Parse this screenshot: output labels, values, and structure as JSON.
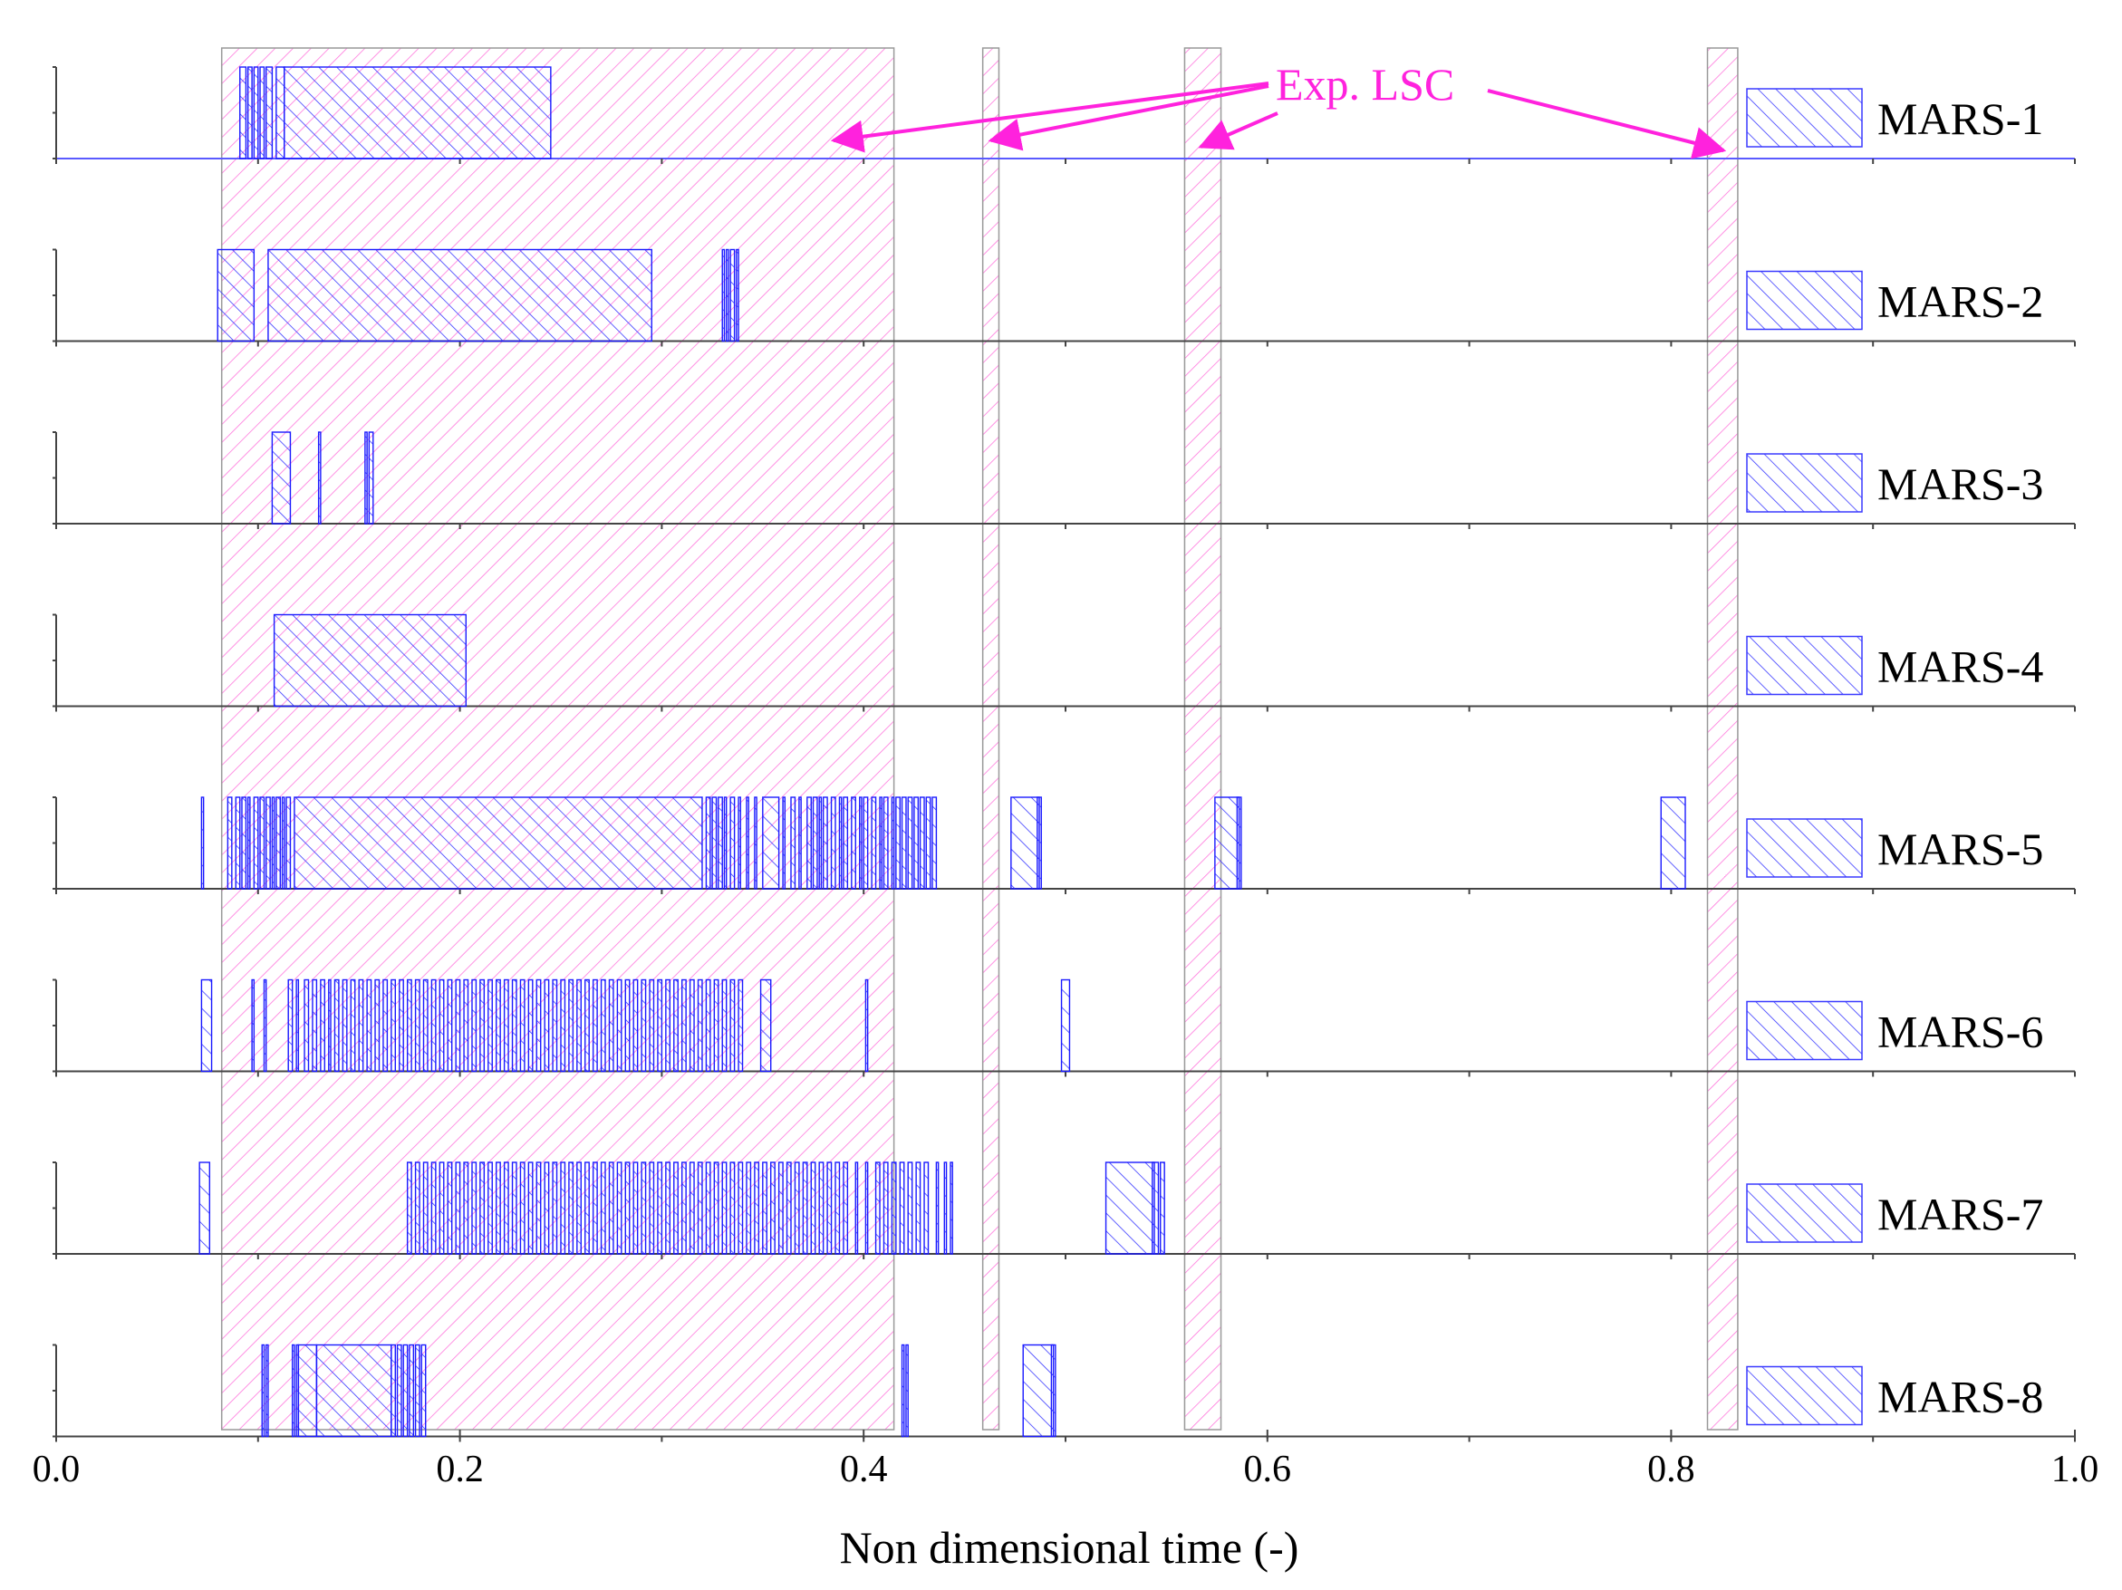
{
  "chart_data": {
    "type": "event-timeline",
    "xlabel": "Non dimensional time (-)",
    "xlim": [
      0.0,
      1.0
    ],
    "xticks": [
      "0.0",
      "0.2",
      "0.4",
      "0.6",
      "0.8",
      "1.0"
    ],
    "xtick_values": [
      0.0,
      0.2,
      0.4,
      0.6,
      0.8,
      1.0
    ],
    "grid": false,
    "colors": {
      "lsc_fill": "#ff66dd",
      "lsc_stroke": "#999999",
      "series": "#1a1aff",
      "annotation": "#ff22dd"
    },
    "experimental_lsc": {
      "label": "Exp. LSC",
      "intervals": [
        [
          0.082,
          0.415
        ],
        [
          0.459,
          0.467
        ],
        [
          0.559,
          0.577
        ],
        [
          0.818,
          0.833
        ]
      ]
    },
    "series": [
      {
        "name": "MARS-1",
        "intervals": [
          [
            0.091,
            0.094
          ],
          [
            0.095,
            0.097
          ],
          [
            0.098,
            0.1
          ],
          [
            0.101,
            0.103
          ],
          [
            0.104,
            0.107
          ],
          [
            0.109,
            0.113
          ],
          [
            0.113,
            0.245
          ]
        ]
      },
      {
        "name": "MARS-2",
        "intervals": [
          [
            0.08,
            0.098
          ],
          [
            0.105,
            0.295
          ],
          [
            0.33,
            0.331
          ],
          [
            0.332,
            0.333
          ],
          [
            0.334,
            0.336
          ],
          [
            0.337,
            0.338
          ]
        ]
      },
      {
        "name": "MARS-3",
        "intervals": [
          [
            0.107,
            0.116
          ],
          [
            0.13,
            0.131
          ],
          [
            0.153,
            0.154
          ],
          [
            0.155,
            0.157
          ]
        ]
      },
      {
        "name": "MARS-4",
        "intervals": [
          [
            0.108,
            0.203
          ]
        ]
      },
      {
        "name": "MARS-5",
        "intervals": [
          [
            0.072,
            0.073
          ],
          [
            0.085,
            0.087
          ],
          [
            0.089,
            0.091
          ],
          [
            0.092,
            0.094
          ],
          [
            0.095,
            0.096
          ],
          [
            0.098,
            0.1
          ],
          [
            0.101,
            0.103
          ],
          [
            0.104,
            0.106
          ],
          [
            0.107,
            0.108
          ],
          [
            0.109,
            0.111
          ],
          [
            0.112,
            0.113
          ],
          [
            0.114,
            0.116
          ],
          [
            0.118,
            0.32
          ],
          [
            0.322,
            0.324
          ],
          [
            0.325,
            0.327
          ],
          [
            0.328,
            0.33
          ],
          [
            0.331,
            0.332
          ],
          [
            0.334,
            0.336
          ],
          [
            0.338,
            0.339
          ],
          [
            0.342,
            0.343
          ],
          [
            0.346,
            0.347
          ],
          [
            0.35,
            0.358
          ],
          [
            0.36,
            0.361
          ],
          [
            0.364,
            0.366
          ],
          [
            0.368,
            0.369
          ],
          [
            0.372,
            0.374
          ],
          [
            0.375,
            0.377
          ],
          [
            0.378,
            0.379
          ],
          [
            0.38,
            0.382
          ],
          [
            0.384,
            0.386
          ],
          [
            0.388,
            0.389
          ],
          [
            0.39,
            0.392
          ],
          [
            0.394,
            0.396
          ],
          [
            0.398,
            0.399
          ],
          [
            0.4,
            0.402
          ],
          [
            0.404,
            0.406
          ],
          [
            0.408,
            0.409
          ],
          [
            0.41,
            0.412
          ],
          [
            0.414,
            0.415
          ],
          [
            0.416,
            0.418
          ],
          [
            0.419,
            0.421
          ],
          [
            0.422,
            0.424
          ],
          [
            0.425,
            0.427
          ],
          [
            0.428,
            0.43
          ],
          [
            0.431,
            0.433
          ],
          [
            0.434,
            0.436
          ],
          [
            0.473,
            0.487
          ],
          [
            0.486,
            0.488
          ],
          [
            0.574,
            0.586
          ],
          [
            0.585,
            0.587
          ],
          [
            0.795,
            0.807
          ]
        ]
      },
      {
        "name": "MARS-6",
        "intervals": [
          [
            0.072,
            0.077
          ],
          [
            0.097,
            0.098
          ],
          [
            0.103,
            0.104
          ],
          [
            0.115,
            0.117
          ],
          [
            0.119,
            0.12
          ],
          [
            0.123,
            0.125
          ],
          [
            0.127,
            0.129
          ],
          [
            0.131,
            0.133
          ],
          [
            0.135,
            0.136
          ],
          [
            0.138,
            0.14
          ],
          [
            0.142,
            0.144
          ],
          [
            0.146,
            0.148
          ],
          [
            0.15,
            0.152
          ],
          [
            0.154,
            0.156
          ],
          [
            0.158,
            0.16
          ],
          [
            0.162,
            0.164
          ],
          [
            0.166,
            0.168
          ],
          [
            0.17,
            0.172
          ],
          [
            0.174,
            0.176
          ],
          [
            0.178,
            0.18
          ],
          [
            0.182,
            0.184
          ],
          [
            0.186,
            0.188
          ],
          [
            0.19,
            0.192
          ],
          [
            0.194,
            0.196
          ],
          [
            0.198,
            0.2
          ],
          [
            0.202,
            0.204
          ],
          [
            0.206,
            0.208
          ],
          [
            0.21,
            0.212
          ],
          [
            0.214,
            0.216
          ],
          [
            0.218,
            0.22
          ],
          [
            0.222,
            0.224
          ],
          [
            0.226,
            0.228
          ],
          [
            0.23,
            0.232
          ],
          [
            0.234,
            0.236
          ],
          [
            0.238,
            0.24
          ],
          [
            0.242,
            0.244
          ],
          [
            0.246,
            0.248
          ],
          [
            0.25,
            0.252
          ],
          [
            0.254,
            0.256
          ],
          [
            0.258,
            0.26
          ],
          [
            0.262,
            0.264
          ],
          [
            0.266,
            0.268
          ],
          [
            0.27,
            0.272
          ],
          [
            0.274,
            0.276
          ],
          [
            0.278,
            0.28
          ],
          [
            0.282,
            0.284
          ],
          [
            0.286,
            0.288
          ],
          [
            0.29,
            0.292
          ],
          [
            0.294,
            0.296
          ],
          [
            0.298,
            0.3
          ],
          [
            0.302,
            0.304
          ],
          [
            0.306,
            0.308
          ],
          [
            0.31,
            0.312
          ],
          [
            0.314,
            0.316
          ],
          [
            0.318,
            0.32
          ],
          [
            0.322,
            0.324
          ],
          [
            0.326,
            0.328
          ],
          [
            0.33,
            0.332
          ],
          [
            0.334,
            0.336
          ],
          [
            0.338,
            0.34
          ],
          [
            0.349,
            0.354
          ],
          [
            0.401,
            0.402
          ],
          [
            0.498,
            0.502
          ]
        ]
      },
      {
        "name": "MARS-7",
        "intervals": [
          [
            0.071,
            0.076
          ],
          [
            0.174,
            0.176
          ],
          [
            0.178,
            0.18
          ],
          [
            0.182,
            0.184
          ],
          [
            0.186,
            0.188
          ],
          [
            0.19,
            0.192
          ],
          [
            0.194,
            0.196
          ],
          [
            0.198,
            0.2
          ],
          [
            0.202,
            0.204
          ],
          [
            0.206,
            0.208
          ],
          [
            0.21,
            0.212
          ],
          [
            0.214,
            0.216
          ],
          [
            0.218,
            0.22
          ],
          [
            0.222,
            0.224
          ],
          [
            0.226,
            0.228
          ],
          [
            0.23,
            0.232
          ],
          [
            0.234,
            0.236
          ],
          [
            0.238,
            0.24
          ],
          [
            0.242,
            0.244
          ],
          [
            0.246,
            0.248
          ],
          [
            0.25,
            0.252
          ],
          [
            0.254,
            0.256
          ],
          [
            0.258,
            0.26
          ],
          [
            0.262,
            0.264
          ],
          [
            0.266,
            0.268
          ],
          [
            0.27,
            0.272
          ],
          [
            0.274,
            0.276
          ],
          [
            0.278,
            0.28
          ],
          [
            0.282,
            0.284
          ],
          [
            0.286,
            0.288
          ],
          [
            0.29,
            0.292
          ],
          [
            0.294,
            0.296
          ],
          [
            0.298,
            0.3
          ],
          [
            0.302,
            0.304
          ],
          [
            0.306,
            0.308
          ],
          [
            0.31,
            0.312
          ],
          [
            0.314,
            0.316
          ],
          [
            0.318,
            0.32
          ],
          [
            0.322,
            0.324
          ],
          [
            0.326,
            0.328
          ],
          [
            0.33,
            0.332
          ],
          [
            0.334,
            0.336
          ],
          [
            0.338,
            0.34
          ],
          [
            0.342,
            0.344
          ],
          [
            0.346,
            0.348
          ],
          [
            0.35,
            0.352
          ],
          [
            0.354,
            0.356
          ],
          [
            0.358,
            0.36
          ],
          [
            0.362,
            0.364
          ],
          [
            0.366,
            0.368
          ],
          [
            0.37,
            0.372
          ],
          [
            0.374,
            0.376
          ],
          [
            0.378,
            0.38
          ],
          [
            0.382,
            0.384
          ],
          [
            0.386,
            0.388
          ],
          [
            0.39,
            0.392
          ],
          [
            0.396,
            0.397
          ],
          [
            0.401,
            0.402
          ],
          [
            0.406,
            0.408
          ],
          [
            0.41,
            0.412
          ],
          [
            0.414,
            0.416
          ],
          [
            0.418,
            0.42
          ],
          [
            0.422,
            0.424
          ],
          [
            0.426,
            0.428
          ],
          [
            0.43,
            0.432
          ],
          [
            0.436,
            0.437
          ],
          [
            0.44,
            0.441
          ],
          [
            0.443,
            0.444
          ],
          [
            0.52,
            0.544
          ],
          [
            0.543,
            0.546
          ],
          [
            0.547,
            0.549
          ]
        ]
      },
      {
        "name": "MARS-8",
        "intervals": [
          [
            0.102,
            0.103
          ],
          [
            0.104,
            0.105
          ],
          [
            0.117,
            0.118
          ],
          [
            0.119,
            0.12
          ],
          [
            0.12,
            0.129
          ],
          [
            0.129,
            0.166
          ],
          [
            0.166,
            0.168
          ],
          [
            0.169,
            0.171
          ],
          [
            0.172,
            0.174
          ],
          [
            0.175,
            0.177
          ],
          [
            0.178,
            0.18
          ],
          [
            0.181,
            0.183
          ],
          [
            0.419,
            0.42
          ],
          [
            0.421,
            0.422
          ],
          [
            0.479,
            0.494
          ],
          [
            0.493,
            0.495
          ]
        ]
      }
    ]
  }
}
